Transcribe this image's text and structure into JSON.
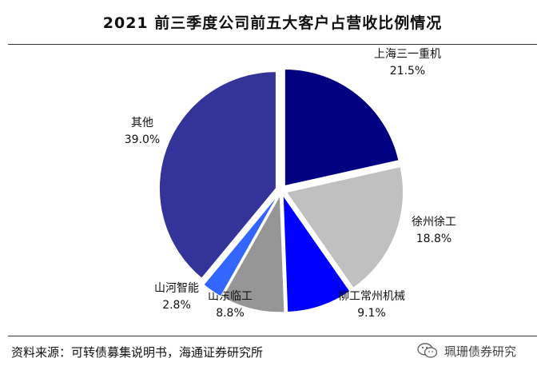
{
  "title": "2021 前三季度公司前五大客户占营收比例情况",
  "source": "资料来源：可转债募集说明书，海通证券研究所",
  "watermark": "珮珊债券研究",
  "chart_data": {
    "type": "pie",
    "title": "2021 前三季度公司前五大客户占营收比例情况",
    "slices": [
      {
        "name": "上海三一重机",
        "value": 21.5,
        "label": "21.5%",
        "color": "#000080"
      },
      {
        "name": "徐州徐工",
        "value": 18.8,
        "label": "18.8%",
        "color": "#c0c0c0"
      },
      {
        "name": "柳工常州机械",
        "value": 9.1,
        "label": "9.1%",
        "color": "#0000ff"
      },
      {
        "name": "山东临工",
        "value": 8.8,
        "label": "8.8%",
        "color": "#969696"
      },
      {
        "name": "山河智能",
        "value": 2.8,
        "label": "2.8%",
        "color": "#3366ff"
      },
      {
        "name": "其他",
        "value": 39.0,
        "label": "39.0%",
        "color": "#333399"
      }
    ],
    "start_angle": "12 o'clock",
    "direction": "clockwise",
    "exploded": true
  }
}
